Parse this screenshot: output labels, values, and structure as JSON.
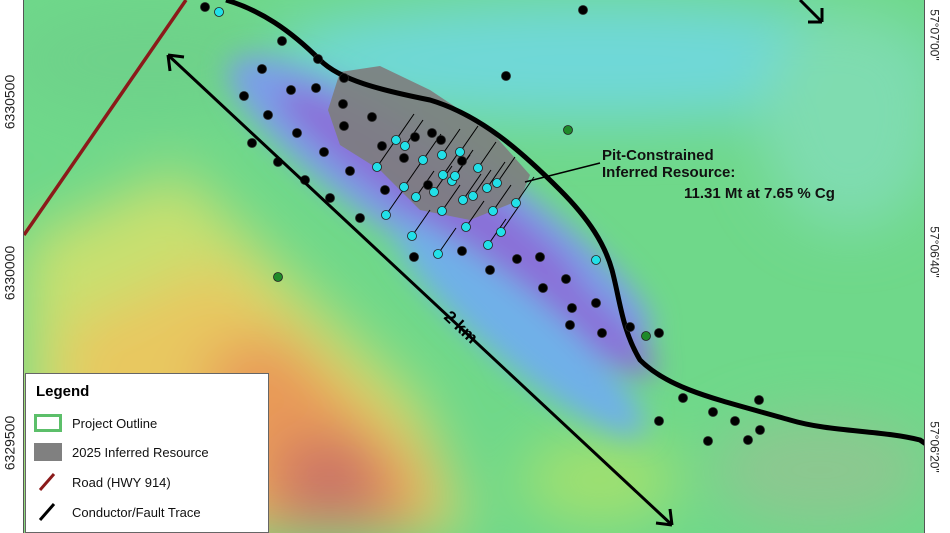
{
  "map": {
    "annotation": {
      "title_line1": "Pit-Constrained",
      "title_line2": "Inferred Resource:",
      "value": "11.31 Mt at 7.65 % Cg"
    },
    "scale_label": "2 km",
    "y_ticks_left": [
      "6330500",
      "6330000",
      "6329500"
    ],
    "y_ticks_right": [
      "57°07'00\"",
      "57°06'40\"",
      "57°06'20\""
    ],
    "colors": {
      "road": "#8b1a1a",
      "fault": "#000000",
      "resource": "#808080",
      "project_outline": "#5cbf6a",
      "drill_historic": "#000000",
      "drill_2025": "#22e0e8",
      "drill_green": "#1f8a2a"
    }
  },
  "legend": {
    "title": "Legend",
    "items": [
      {
        "label": "Project Outline",
        "icon": "outline-swatch"
      },
      {
        "label": "2025 Inferred Resource",
        "icon": "grey-swatch"
      },
      {
        "label": "Road (HWY 914)",
        "icon": "red-line"
      },
      {
        "label": "Conductor/Fault Trace",
        "icon": "black-line"
      }
    ]
  }
}
